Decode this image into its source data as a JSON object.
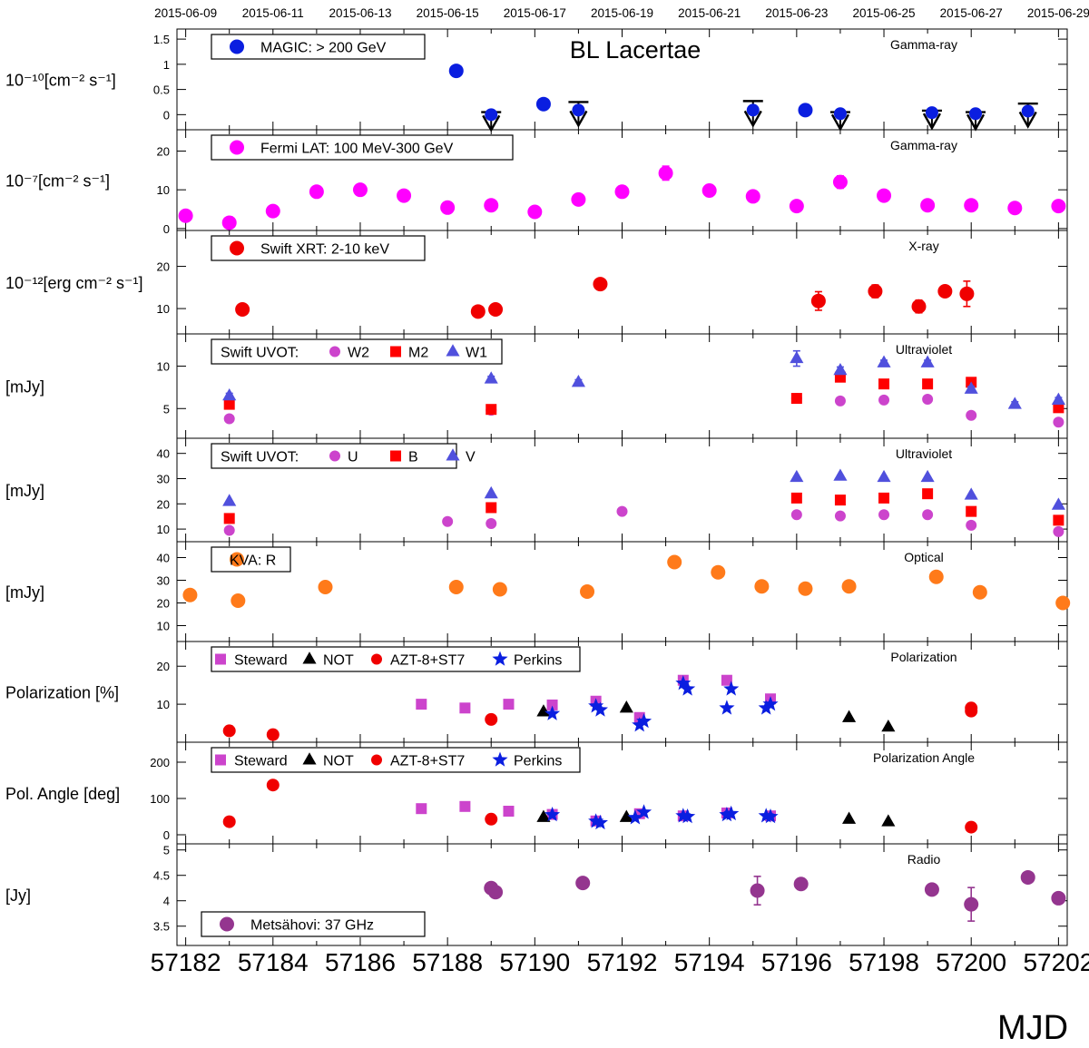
{
  "chart_data": {
    "type": "scatter",
    "title": "BL Lacertae",
    "xlabel": "MJD",
    "xlim": [
      57181.8,
      57202.2
    ],
    "x_ticks": [
      57182,
      57184,
      57186,
      57188,
      57190,
      57192,
      57194,
      57196,
      57198,
      57200,
      57202
    ],
    "date_ticks": [
      {
        "x": 57182,
        "label": "2015-06-09"
      },
      {
        "x": 57184,
        "label": "2015-06-11"
      },
      {
        "x": 57186,
        "label": "2015-06-13"
      },
      {
        "x": 57188,
        "label": "2015-06-15"
      },
      {
        "x": 57190,
        "label": "2015-06-17"
      },
      {
        "x": 57192,
        "label": "2015-06-19"
      },
      {
        "x": 57194,
        "label": "2015-06-21"
      },
      {
        "x": 57196,
        "label": "2015-06-23"
      },
      {
        "x": 57198,
        "label": "2015-06-25"
      },
      {
        "x": 57200,
        "label": "2015-06-27"
      },
      {
        "x": 57202,
        "label": "2015-06-29"
      }
    ],
    "panels": [
      {
        "id": "magic",
        "ylabel": "10⁻¹⁰[cm⁻² s⁻¹]",
        "band": "Gamma-ray",
        "ylim": [
          -0.3,
          1.7
        ],
        "yticks": [
          0,
          0.5,
          1,
          1.5
        ],
        "ytick_labels": [
          "0",
          "0.5",
          "1",
          "1.5"
        ],
        "legend_width": 235,
        "legend": [
          {
            "label": "MAGIC: > 200 GeV",
            "marker": "circle",
            "color": "#0a1ee0"
          }
        ],
        "series": [
          {
            "name": "MAGIC: > 200 GeV",
            "marker": "circle",
            "color": "#0a1ee0",
            "size": 8,
            "x": [
              57188.2,
              57190.2,
              57196.2
            ],
            "y": [
              0.87,
              0.21,
              0.09
            ],
            "err": [
              0.02,
              0.02,
              0.02
            ]
          },
          {
            "name": "MAGIC upper limits",
            "marker": "ul",
            "color": "#0a1ee0",
            "size": 8,
            "x": [
              57189,
              57191,
              57195,
              57197,
              57199.1,
              57200.1,
              57201.3
            ],
            "y": [
              0.0,
              0.09,
              0.09,
              0.02,
              0.04,
              0.02,
              0.07
            ],
            "ul": [
              0.05,
              0.25,
              0.27,
              0.05,
              0.08,
              0.05,
              0.22
            ]
          }
        ]
      },
      {
        "id": "fermi",
        "ylabel": "10⁻⁷[cm⁻² s⁻¹]",
        "band": "Gamma-ray",
        "ylim": [
          -0.5,
          25.5
        ],
        "yticks": [
          0,
          10,
          20
        ],
        "ytick_labels": [
          "0",
          "10",
          "20"
        ],
        "legend_width": 332,
        "legend": [
          {
            "label": "Fermi LAT: 100 MeV-300 GeV",
            "marker": "circle",
            "color": "#ff00ff"
          }
        ],
        "series": [
          {
            "name": "Fermi LAT: 100 MeV-300 GeV",
            "marker": "circle",
            "color": "#ff00ff",
            "size": 8,
            "x": [
              57182,
              57183,
              57184,
              57185,
              57186,
              57187,
              57188,
              57189,
              57190,
              57191,
              57192,
              57193,
              57194,
              57195,
              57196,
              57197,
              57198,
              57199,
              57200,
              57201,
              57202
            ],
            "y": [
              3.3,
              1.5,
              4.5,
              9.5,
              10,
              8.5,
              5.4,
              6,
              4.3,
              7.5,
              9.5,
              14.3,
              9.8,
              8.3,
              5.8,
              12,
              8.5,
              6,
              6,
              5.3,
              5.8
            ],
            "err": [
              0.8,
              0.8,
              1.0,
              1.0,
              1.0,
              1.0,
              1.0,
              1.0,
              1.0,
              1.0,
              1.5,
              1.8,
              1.5,
              1.2,
              1.0,
              1.6,
              1.0,
              1.0,
              1.0,
              1.0,
              1.0
            ]
          }
        ]
      },
      {
        "id": "xrt",
        "ylabel": "10⁻¹²[erg cm⁻² s⁻¹]",
        "band": "X-ray",
        "ylim": [
          4,
          28.5
        ],
        "yticks": [
          10,
          20
        ],
        "ytick_labels": [
          "10",
          "20"
        ],
        "legend_width": 235,
        "legend": [
          {
            "label": "Swift XRT: 2-10 keV",
            "marker": "circle",
            "color": "#f00000"
          }
        ],
        "series": [
          {
            "name": "Swift XRT: 2-10 keV",
            "marker": "circle",
            "color": "#f00000",
            "size": 8,
            "x": [
              57183.3,
              57188.7,
              57189.1,
              57191.5,
              57196.5,
              57197.8,
              57198.8,
              57199.4,
              57199.9
            ],
            "y": [
              9.8,
              9.3,
              9.8,
              15.8,
              11.8,
              14.1,
              10.5,
              14.1,
              13.5
            ],
            "err": [
              0.4,
              0.4,
              0.4,
              0.5,
              2.2,
              1.5,
              1.5,
              1.2,
              3.0
            ]
          }
        ]
      },
      {
        "id": "uvot_uv",
        "ylabel": "[mJy]",
        "band": "Ultraviolet",
        "ylim": [
          1.5,
          13.8
        ],
        "yticks": [
          5,
          10
        ],
        "ytick_labels": [
          "5",
          "10"
        ],
        "legend_width": 320,
        "legend_prefix": "Swift UVOT:",
        "legend": [
          {
            "label": "W2",
            "marker": "circle",
            "color": "#cc44cc"
          },
          {
            "label": "M2",
            "marker": "square",
            "color": "#ff0000"
          },
          {
            "label": "W1",
            "marker": "triangle",
            "color": "#5050dd"
          }
        ],
        "series": [
          {
            "name": "W2",
            "marker": "circle",
            "color": "#cc44cc",
            "size": 6,
            "x": [
              57183,
              57189,
              57196,
              57197,
              57198,
              57199,
              57200,
              57202
            ],
            "y": [
              3.8,
              4.8,
              6.2,
              5.9,
              6.0,
              6.1,
              4.2,
              3.4
            ]
          },
          {
            "name": "M2",
            "marker": "square",
            "color": "#ff0000",
            "size": 6,
            "x": [
              57183,
              57189,
              57196,
              57197,
              57198,
              57199,
              57200,
              57202
            ],
            "y": [
              5.5,
              4.9,
              6.2,
              8.7,
              7.9,
              7.9,
              8.1,
              5.1
            ]
          },
          {
            "name": "W1",
            "marker": "triangle",
            "color": "#5050dd",
            "size": 7,
            "x": [
              57183,
              57189,
              57191,
              57196,
              57197,
              57198,
              57199,
              57200,
              57201,
              57202
            ],
            "y": [
              6.5,
              8.5,
              8.1,
              10.9,
              9.5,
              10.4,
              10.4,
              7.3,
              5.5,
              6.0
            ],
            "err": [
              0.3,
              0.3,
              0.3,
              0.9,
              0.4,
              0.3,
              0.3,
              0.3,
              0.3,
              0.3
            ]
          }
        ]
      },
      {
        "id": "uvot_opt",
        "ylabel": "[mJy]",
        "band": "Ultraviolet",
        "ylim": [
          5,
          46
        ],
        "yticks": [
          10,
          20,
          30,
          40
        ],
        "ytick_labels": [
          "10",
          "20",
          "30",
          "40"
        ],
        "legend_width": 270,
        "legend_prefix": "Swift UVOT:",
        "legend": [
          {
            "label": "U",
            "marker": "circle",
            "color": "#cc44cc"
          },
          {
            "label": "B",
            "marker": "square",
            "color": "#ff0000"
          },
          {
            "label": "V",
            "marker": "triangle",
            "color": "#5050dd"
          }
        ],
        "series": [
          {
            "name": "U",
            "marker": "circle",
            "color": "#cc44cc",
            "size": 6,
            "x": [
              57183,
              57188,
              57189,
              57192,
              57196,
              57197,
              57198,
              57199,
              57200,
              57202
            ],
            "y": [
              9.5,
              13,
              12.2,
              17,
              15.7,
              15.2,
              15.7,
              15.7,
              11.5,
              9.0
            ]
          },
          {
            "name": "B",
            "marker": "square",
            "color": "#ff0000",
            "size": 6,
            "x": [
              57183,
              57189,
              57196,
              57197,
              57198,
              57199,
              57200,
              57202
            ],
            "y": [
              14.2,
              18.5,
              22.3,
              21.5,
              22.3,
              24,
              17,
              13.5
            ]
          },
          {
            "name": "V",
            "marker": "triangle",
            "color": "#5050dd",
            "size": 7,
            "x": [
              57183,
              57189,
              57196,
              57197,
              57198,
              57199,
              57200,
              57202
            ],
            "y": [
              21,
              24,
              30.5,
              31,
              30.5,
              30.5,
              23.5,
              19.5
            ]
          }
        ]
      },
      {
        "id": "kva",
        "ylabel": "[mJy]",
        "band": "Optical",
        "ylim": [
          3,
          47
        ],
        "yticks": [
          10,
          20,
          30,
          40
        ],
        "ytick_labels": [
          "10",
          "20",
          "30",
          "40"
        ],
        "legend_width": 87,
        "legend": [
          {
            "label": "KVA: R",
            "marker": "circle",
            "color": "#ff7a1a"
          }
        ],
        "series": [
          {
            "name": "KVA: R",
            "marker": "circle",
            "color": "#ff7a1a",
            "size": 8,
            "x": [
              57182.1,
              57183.2,
              57185.2,
              57188.2,
              57189.2,
              57191.2,
              57193.2,
              57194.2,
              57195.2,
              57196.2,
              57197.2,
              57199.2,
              57200.2,
              57202.1
            ],
            "y": [
              23.5,
              21,
              27,
              27,
              26,
              25,
              38,
              33.5,
              27.3,
              26.3,
              27.3,
              31.5,
              24.7,
              20
            ]
          }
        ]
      },
      {
        "id": "pol",
        "ylabel": "Polarization [%]",
        "band": "Polarization",
        "ylim": [
          0,
          26.5
        ],
        "yticks": [
          10,
          20
        ],
        "ytick_labels": [
          "10",
          "20"
        ],
        "legend_width": 406,
        "legend": [
          {
            "label": "Steward",
            "marker": "square",
            "color": "#cc44cc"
          },
          {
            "label": "NOT",
            "marker": "triangle",
            "color": "#000000"
          },
          {
            "label": "AZT-8+ST7",
            "marker": "circle",
            "color": "#f00000"
          },
          {
            "label": "Perkins",
            "marker": "star",
            "color": "#0a1ee0"
          }
        ],
        "series": [
          {
            "name": "Steward",
            "marker": "square",
            "color": "#cc44cc",
            "size": 6,
            "x": [
              57187.4,
              57188.4,
              57189.4,
              57190.4,
              57191.4,
              57192.4,
              57193.4,
              57194.4,
              57195.4
            ],
            "y": [
              10,
              9,
              10,
              9.8,
              10.8,
              6.5,
              16.3,
              16.3,
              11.4
            ]
          },
          {
            "name": "NOT",
            "marker": "triangle",
            "color": "#000000",
            "size": 7,
            "x": [
              57190.2,
              57192.1,
              57197.2,
              57198.1
            ],
            "y": [
              8,
              9,
              6.5,
              4
            ]
          },
          {
            "name": "AZT-8+ST7",
            "marker": "circle",
            "color": "#f00000",
            "size": 7,
            "x": [
              57183,
              57184,
              57189,
              57200,
              57200
            ],
            "y": [
              3,
              2,
              6,
              9,
              8.2
            ]
          },
          {
            "name": "Perkins",
            "marker": "star",
            "color": "#0a1ee0",
            "size": 9,
            "x": [
              57190.4,
              57191.4,
              57191.5,
              57192.4,
              57192.5,
              57193.4,
              57193.5,
              57194.4,
              57194.5,
              57195.3,
              57195.4
            ],
            "y": [
              7.5,
              9.5,
              8.5,
              4.5,
              5.5,
              15.5,
              14,
              9,
              14,
              9,
              10
            ]
          }
        ]
      },
      {
        "id": "polangle",
        "ylabel": "Pol. Angle [deg]",
        "band": "Polarization Angle",
        "ylim": [
          -25,
          255
        ],
        "yticks": [
          0,
          100,
          200
        ],
        "ytick_labels": [
          "0",
          "100",
          "200"
        ],
        "legend_width": 406,
        "legend": [
          {
            "label": "Steward",
            "marker": "square",
            "color": "#cc44cc"
          },
          {
            "label": "NOT",
            "marker": "triangle",
            "color": "#000000"
          },
          {
            "label": "AZT-8+ST7",
            "marker": "circle",
            "color": "#f00000"
          },
          {
            "label": "Perkins",
            "marker": "star",
            "color": "#0a1ee0"
          }
        ],
        "series": [
          {
            "name": "Steward",
            "marker": "square",
            "color": "#cc44cc",
            "size": 6,
            "x": [
              57187.4,
              57188.4,
              57189.4,
              57190.4,
              57191.4,
              57192.4,
              57193.4,
              57194.4,
              57195.4
            ],
            "y": [
              72,
              78,
              65,
              56,
              38,
              58,
              52,
              60,
              52
            ]
          },
          {
            "name": "NOT",
            "marker": "triangle",
            "color": "#000000",
            "size": 7,
            "x": [
              57190.2,
              57192.1,
              57197.2,
              57198.1
            ],
            "y": [
              48,
              48,
              43,
              36
            ]
          },
          {
            "name": "AZT-8+ST7",
            "marker": "circle",
            "color": "#f00000",
            "size": 7,
            "x": [
              57183,
              57184,
              57189,
              57200
            ],
            "y": [
              36,
              137,
              43,
              21
            ]
          },
          {
            "name": "Perkins",
            "marker": "star",
            "color": "#0a1ee0",
            "size": 9,
            "x": [
              57190.4,
              57191.4,
              57191.5,
              57192.3,
              57192.5,
              57193.4,
              57193.5,
              57194.4,
              57194.5,
              57195.3,
              57195.4
            ],
            "y": [
              55,
              37,
              33,
              47,
              62,
              52,
              50,
              55,
              58,
              52,
              50
            ]
          }
        ]
      },
      {
        "id": "radio",
        "ylabel": "[Jy]",
        "band": "Radio",
        "ylim": [
          3.12,
          5.12
        ],
        "yticks": [
          3.5,
          4,
          4.5,
          5
        ],
        "ytick_labels": [
          "3.5",
          "4",
          "4.5",
          "5"
        ],
        "legend_width": 246,
        "legend_pos": "bottom-left",
        "legend": [
          {
            "label": "Metsähovi: 37 GHz",
            "marker": "circle",
            "color": "#94358f"
          }
        ],
        "series": [
          {
            "name": "Metsähovi: 37 GHz",
            "marker": "circle",
            "color": "#94358f",
            "size": 8,
            "x": [
              57189,
              57189.1,
              57191.1,
              57195.1,
              57196.1,
              57199.1,
              57200,
              57201.3,
              57202
            ],
            "y": [
              4.25,
              4.17,
              4.35,
              4.2,
              4.33,
              4.22,
              3.93,
              4.46,
              4.05
            ],
            "err": [
              0.06,
              0.05,
              0.08,
              0.28,
              0.11,
              0.1,
              0.33,
              0.1,
              0.1
            ]
          }
        ]
      }
    ]
  }
}
